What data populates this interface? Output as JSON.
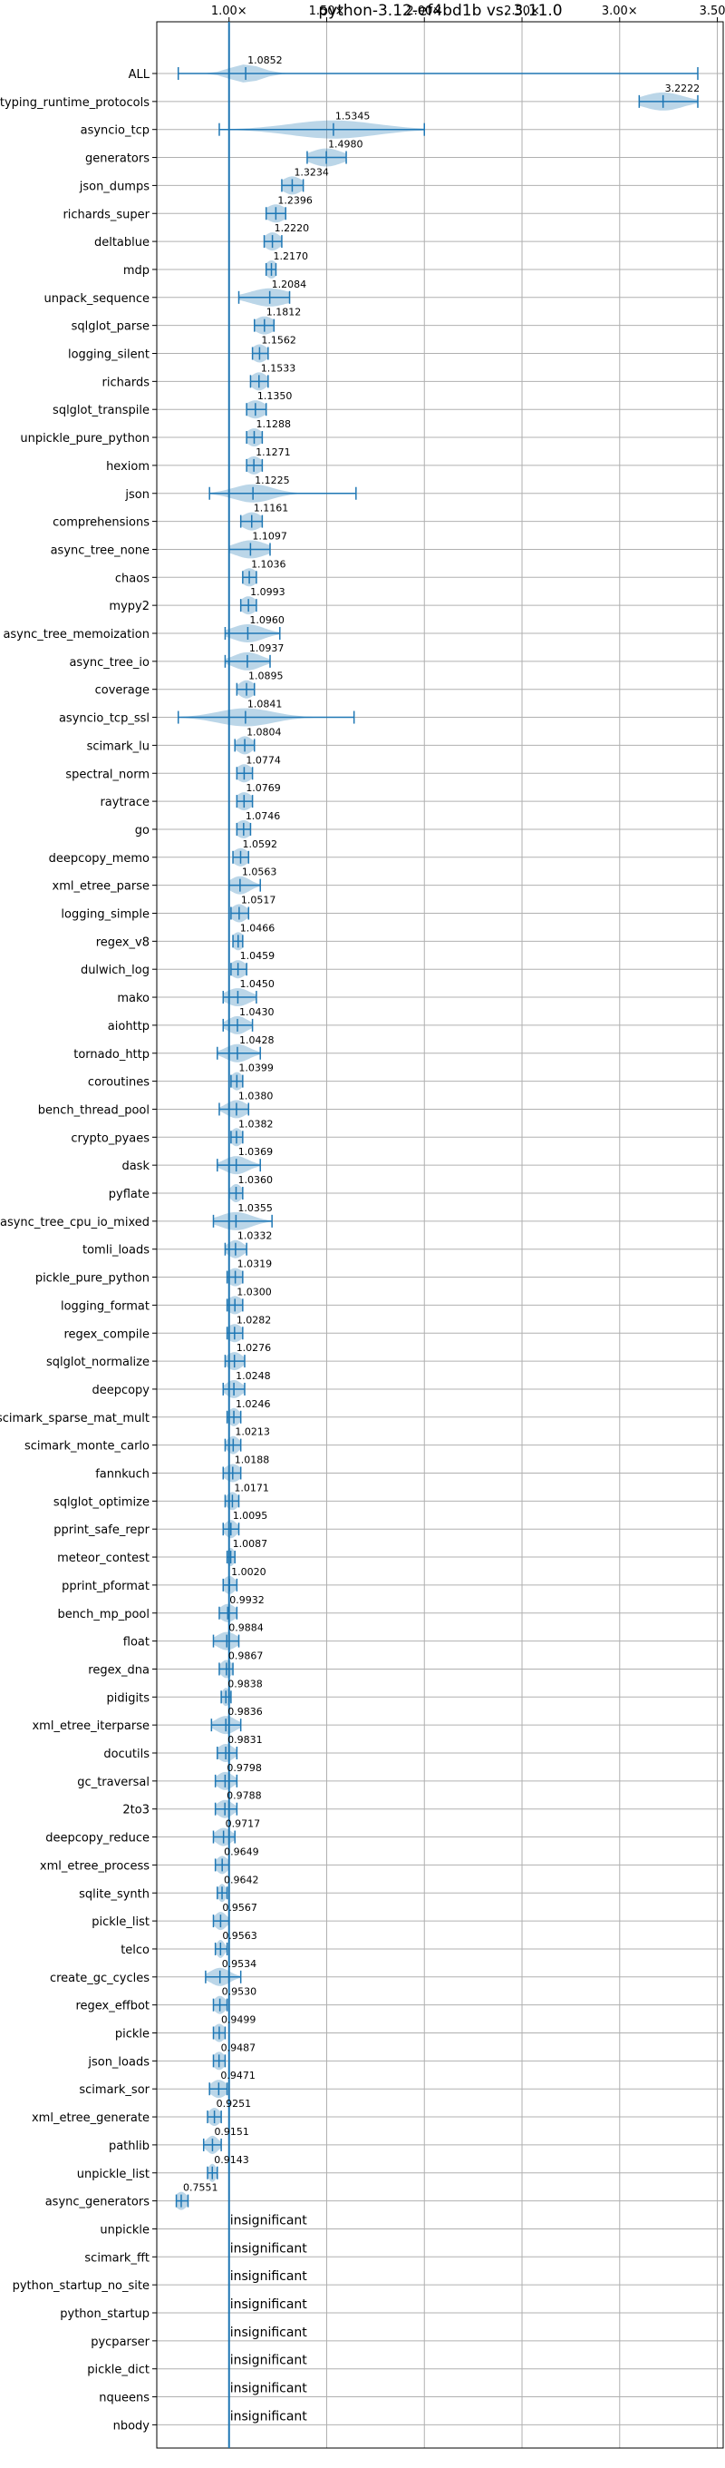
{
  "chart_data": {
    "type": "violin",
    "orientation": "horizontal",
    "title": "python-3.12-ef4bd1b vs. 3.11.0",
    "xlabel": "",
    "ylabel": "",
    "xlim": [
      0.63,
      3.53
    ],
    "x_ticks": [
      1.0,
      1.5,
      2.0,
      2.5,
      3.0,
      3.5
    ],
    "x_tick_labels": [
      "1.00×",
      "1.50×",
      "2.00×",
      "2.50×",
      "3.00×",
      "3.50×"
    ],
    "x_tick_position": "top",
    "reference_line": 1.0,
    "grid": true,
    "colors": {
      "violin": "#1f77b4",
      "reference_line": "#1f77b4",
      "grid": "#b0b0b0",
      "axes": "#000000"
    },
    "insignificant_label": "insignificant",
    "benchmarks": [
      {
        "name": "ALL",
        "label": "1.0852",
        "median": 1.0852,
        "min": 0.74,
        "max": 3.4,
        "spread": 0.08
      },
      {
        "name": "typing_runtime_protocols",
        "label": "3.2222",
        "median": 3.2222,
        "min": 3.1,
        "max": 3.4,
        "spread": 0.1
      },
      {
        "name": "asyncio_tcp",
        "label": "1.5345",
        "median": 1.5345,
        "min": 0.95,
        "max": 2.0,
        "spread": 0.22
      },
      {
        "name": "generators",
        "label": "1.4980",
        "median": 1.498,
        "min": 1.4,
        "max": 1.6,
        "spread": 0.08
      },
      {
        "name": "json_dumps",
        "label": "1.3234",
        "median": 1.3234,
        "min": 1.27,
        "max": 1.38,
        "spread": 0.05
      },
      {
        "name": "richards_super",
        "label": "1.2396",
        "median": 1.2396,
        "min": 1.19,
        "max": 1.29,
        "spread": 0.05
      },
      {
        "name": "deltablue",
        "label": "1.2220",
        "median": 1.222,
        "min": 1.18,
        "max": 1.27,
        "spread": 0.04
      },
      {
        "name": "mdp",
        "label": "1.2170",
        "median": 1.217,
        "min": 1.19,
        "max": 1.24,
        "spread": 0.03
      },
      {
        "name": "unpack_sequence",
        "label": "1.2084",
        "median": 1.2084,
        "min": 1.05,
        "max": 1.31,
        "spread": 0.1
      },
      {
        "name": "sqlglot_parse",
        "label": "1.1812",
        "median": 1.1812,
        "min": 1.13,
        "max": 1.23,
        "spread": 0.05
      },
      {
        "name": "logging_silent",
        "label": "1.1562",
        "median": 1.1562,
        "min": 1.12,
        "max": 1.2,
        "spread": 0.04
      },
      {
        "name": "richards",
        "label": "1.1533",
        "median": 1.1533,
        "min": 1.11,
        "max": 1.2,
        "spread": 0.04
      },
      {
        "name": "sqlglot_transpile",
        "label": "1.1350",
        "median": 1.135,
        "min": 1.09,
        "max": 1.19,
        "spread": 0.05
      },
      {
        "name": "unpickle_pure_python",
        "label": "1.1288",
        "median": 1.1288,
        "min": 1.09,
        "max": 1.17,
        "spread": 0.04
      },
      {
        "name": "hexiom",
        "label": "1.1271",
        "median": 1.1271,
        "min": 1.09,
        "max": 1.17,
        "spread": 0.04
      },
      {
        "name": "json",
        "label": "1.1225",
        "median": 1.1225,
        "min": 0.9,
        "max": 1.65,
        "spread": 0.1
      },
      {
        "name": "comprehensions",
        "label": "1.1161",
        "median": 1.1161,
        "min": 1.06,
        "max": 1.17,
        "spread": 0.05
      },
      {
        "name": "async_tree_none",
        "label": "1.1097",
        "median": 1.1097,
        "min": 1.0,
        "max": 1.21,
        "spread": 0.08
      },
      {
        "name": "chaos",
        "label": "1.1036",
        "median": 1.1036,
        "min": 1.07,
        "max": 1.14,
        "spread": 0.04
      },
      {
        "name": "mypy2",
        "label": "1.0993",
        "median": 1.0993,
        "min": 1.06,
        "max": 1.14,
        "spread": 0.04
      },
      {
        "name": "async_tree_memoization",
        "label": "1.0960",
        "median": 1.096,
        "min": 0.98,
        "max": 1.26,
        "spread": 0.08
      },
      {
        "name": "async_tree_io",
        "label": "1.0937",
        "median": 1.0937,
        "min": 0.98,
        "max": 1.21,
        "spread": 0.07
      },
      {
        "name": "coverage",
        "label": "1.0895",
        "median": 1.0895,
        "min": 1.04,
        "max": 1.13,
        "spread": 0.04
      },
      {
        "name": "asyncio_tcp_ssl",
        "label": "1.0841",
        "median": 1.0841,
        "min": 0.74,
        "max": 1.64,
        "spread": 0.14
      },
      {
        "name": "scimark_lu",
        "label": "1.0804",
        "median": 1.0804,
        "min": 1.03,
        "max": 1.13,
        "spread": 0.04
      },
      {
        "name": "spectral_norm",
        "label": "1.0774",
        "median": 1.0774,
        "min": 1.04,
        "max": 1.12,
        "spread": 0.04
      },
      {
        "name": "raytrace",
        "label": "1.0769",
        "median": 1.0769,
        "min": 1.04,
        "max": 1.12,
        "spread": 0.04
      },
      {
        "name": "go",
        "label": "1.0746",
        "median": 1.0746,
        "min": 1.04,
        "max": 1.11,
        "spread": 0.04
      },
      {
        "name": "deepcopy_memo",
        "label": "1.0592",
        "median": 1.0592,
        "min": 1.02,
        "max": 1.1,
        "spread": 0.04
      },
      {
        "name": "xml_etree_parse",
        "label": "1.0563",
        "median": 1.0563,
        "min": 1.0,
        "max": 1.16,
        "spread": 0.05
      },
      {
        "name": "logging_simple",
        "label": "1.0517",
        "median": 1.0517,
        "min": 1.01,
        "max": 1.1,
        "spread": 0.04
      },
      {
        "name": "regex_v8",
        "label": "1.0466",
        "median": 1.0466,
        "min": 1.02,
        "max": 1.07,
        "spread": 0.03
      },
      {
        "name": "dulwich_log",
        "label": "1.0459",
        "median": 1.0459,
        "min": 1.01,
        "max": 1.09,
        "spread": 0.04
      },
      {
        "name": "mako",
        "label": "1.0450",
        "median": 1.045,
        "min": 0.97,
        "max": 1.14,
        "spread": 0.06
      },
      {
        "name": "aiohttp",
        "label": "1.0430",
        "median": 1.043,
        "min": 0.97,
        "max": 1.12,
        "spread": 0.05
      },
      {
        "name": "tornado_http",
        "label": "1.0428",
        "median": 1.0428,
        "min": 0.94,
        "max": 1.16,
        "spread": 0.06
      },
      {
        "name": "coroutines",
        "label": "1.0399",
        "median": 1.0399,
        "min": 1.01,
        "max": 1.07,
        "spread": 0.03
      },
      {
        "name": "bench_thread_pool",
        "label": "1.0380",
        "median": 1.038,
        "min": 0.95,
        "max": 1.1,
        "spread": 0.05
      },
      {
        "name": "crypto_pyaes",
        "label": "1.0382",
        "median": 1.0382,
        "min": 1.01,
        "max": 1.07,
        "spread": 0.03
      },
      {
        "name": "dask",
        "label": "1.0369",
        "median": 1.0369,
        "min": 0.94,
        "max": 1.16,
        "spread": 0.06
      },
      {
        "name": "pyflate",
        "label": "1.0360",
        "median": 1.036,
        "min": 1.0,
        "max": 1.07,
        "spread": 0.03
      },
      {
        "name": "async_tree_cpu_io_mixed",
        "label": "1.0355",
        "median": 1.0355,
        "min": 0.92,
        "max": 1.22,
        "spread": 0.08
      },
      {
        "name": "tomli_loads",
        "label": "1.0332",
        "median": 1.0332,
        "min": 0.98,
        "max": 1.09,
        "spread": 0.04
      },
      {
        "name": "pickle_pure_python",
        "label": "1.0319",
        "median": 1.0319,
        "min": 0.99,
        "max": 1.07,
        "spread": 0.04
      },
      {
        "name": "logging_format",
        "label": "1.0300",
        "median": 1.03,
        "min": 0.99,
        "max": 1.07,
        "spread": 0.04
      },
      {
        "name": "regex_compile",
        "label": "1.0282",
        "median": 1.0282,
        "min": 0.99,
        "max": 1.07,
        "spread": 0.04
      },
      {
        "name": "sqlglot_normalize",
        "label": "1.0276",
        "median": 1.0276,
        "min": 0.98,
        "max": 1.08,
        "spread": 0.04
      },
      {
        "name": "deepcopy",
        "label": "1.0248",
        "median": 1.0248,
        "min": 0.97,
        "max": 1.08,
        "spread": 0.04
      },
      {
        "name": "scimark_sparse_mat_mult",
        "label": "1.0246",
        "median": 1.0246,
        "min": 0.99,
        "max": 1.06,
        "spread": 0.03
      },
      {
        "name": "scimark_monte_carlo",
        "label": "1.0213",
        "median": 1.0213,
        "min": 0.98,
        "max": 1.06,
        "spread": 0.03
      },
      {
        "name": "fannkuch",
        "label": "1.0188",
        "median": 1.0188,
        "min": 0.97,
        "max": 1.06,
        "spread": 0.04
      },
      {
        "name": "sqlglot_optimize",
        "label": "1.0171",
        "median": 1.0171,
        "min": 0.98,
        "max": 1.05,
        "spread": 0.03
      },
      {
        "name": "pprint_safe_repr",
        "label": "1.0095",
        "median": 1.0095,
        "min": 0.97,
        "max": 1.05,
        "spread": 0.03
      },
      {
        "name": "meteor_contest",
        "label": "1.0087",
        "median": 1.0087,
        "min": 0.99,
        "max": 1.03,
        "spread": 0.02
      },
      {
        "name": "pprint_pformat",
        "label": "1.0020",
        "median": 1.002,
        "min": 0.97,
        "max": 1.04,
        "spread": 0.03
      },
      {
        "name": "bench_mp_pool",
        "label": "0.9932",
        "median": 0.9932,
        "min": 0.95,
        "max": 1.04,
        "spread": 0.04
      },
      {
        "name": "float",
        "label": "0.9884",
        "median": 0.9884,
        "min": 0.92,
        "max": 1.05,
        "spread": 0.05
      },
      {
        "name": "regex_dna",
        "label": "0.9867",
        "median": 0.9867,
        "min": 0.95,
        "max": 1.02,
        "spread": 0.03
      },
      {
        "name": "pidigits",
        "label": "0.9838",
        "median": 0.9838,
        "min": 0.96,
        "max": 1.01,
        "spread": 0.02
      },
      {
        "name": "xml_etree_iterparse",
        "label": "0.9836",
        "median": 0.9836,
        "min": 0.91,
        "max": 1.06,
        "spread": 0.05
      },
      {
        "name": "docutils",
        "label": "0.9831",
        "median": 0.9831,
        "min": 0.94,
        "max": 1.04,
        "spread": 0.04
      },
      {
        "name": "gc_traversal",
        "label": "0.9798",
        "median": 0.9798,
        "min": 0.93,
        "max": 1.04,
        "spread": 0.04
      },
      {
        "name": "2to3",
        "label": "0.9788",
        "median": 0.9788,
        "min": 0.93,
        "max": 1.04,
        "spread": 0.04
      },
      {
        "name": "deepcopy_reduce",
        "label": "0.9717",
        "median": 0.9717,
        "min": 0.92,
        "max": 1.03,
        "spread": 0.04
      },
      {
        "name": "xml_etree_process",
        "label": "0.9649",
        "median": 0.9649,
        "min": 0.93,
        "max": 1.0,
        "spread": 0.03
      },
      {
        "name": "sqlite_synth",
        "label": "0.9642",
        "median": 0.9642,
        "min": 0.94,
        "max": 0.99,
        "spread": 0.02
      },
      {
        "name": "pickle_list",
        "label": "0.9567",
        "median": 0.9567,
        "min": 0.92,
        "max": 1.0,
        "spread": 0.03
      },
      {
        "name": "telco",
        "label": "0.9563",
        "median": 0.9563,
        "min": 0.93,
        "max": 0.99,
        "spread": 0.02
      },
      {
        "name": "create_gc_cycles",
        "label": "0.9534",
        "median": 0.9534,
        "min": 0.88,
        "max": 1.06,
        "spread": 0.05
      },
      {
        "name": "regex_effbot",
        "label": "0.9530",
        "median": 0.953,
        "min": 0.92,
        "max": 0.99,
        "spread": 0.03
      },
      {
        "name": "pickle",
        "label": "0.9499",
        "median": 0.9499,
        "min": 0.92,
        "max": 0.98,
        "spread": 0.03
      },
      {
        "name": "json_loads",
        "label": "0.9487",
        "median": 0.9487,
        "min": 0.92,
        "max": 0.98,
        "spread": 0.03
      },
      {
        "name": "scimark_sor",
        "label": "0.9471",
        "median": 0.9471,
        "min": 0.9,
        "max": 0.99,
        "spread": 0.04
      },
      {
        "name": "xml_etree_generate",
        "label": "0.9251",
        "median": 0.9251,
        "min": 0.89,
        "max": 0.96,
        "spread": 0.03
      },
      {
        "name": "pathlib",
        "label": "0.9151",
        "median": 0.9151,
        "min": 0.87,
        "max": 0.96,
        "spread": 0.03
      },
      {
        "name": "unpickle_list",
        "label": "0.9143",
        "median": 0.9143,
        "min": 0.89,
        "max": 0.94,
        "spread": 0.02
      },
      {
        "name": "async_generators",
        "label": "0.7551",
        "median": 0.7551,
        "min": 0.73,
        "max": 0.79,
        "spread": 0.03
      },
      {
        "name": "unpickle",
        "label": "insignificant",
        "insignificant": true
      },
      {
        "name": "scimark_fft",
        "label": "insignificant",
        "insignificant": true
      },
      {
        "name": "python_startup_no_site",
        "label": "insignificant",
        "insignificant": true
      },
      {
        "name": "python_startup",
        "label": "insignificant",
        "insignificant": true
      },
      {
        "name": "pycparser",
        "label": "insignificant",
        "insignificant": true
      },
      {
        "name": "pickle_dict",
        "label": "insignificant",
        "insignificant": true
      },
      {
        "name": "nqueens",
        "label": "insignificant",
        "insignificant": true
      },
      {
        "name": "nbody",
        "label": "insignificant",
        "insignificant": true
      }
    ]
  }
}
